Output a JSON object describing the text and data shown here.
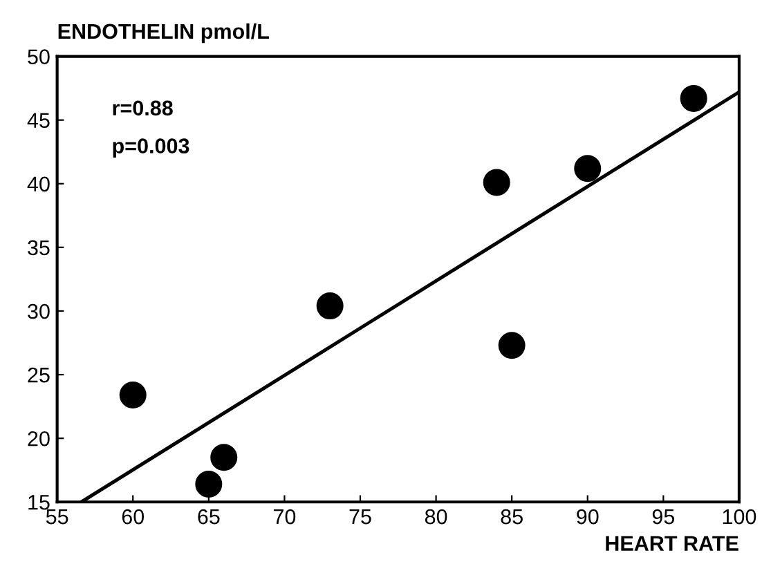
{
  "chart_data": {
    "type": "scatter",
    "ylabel": "ENDOTHELIN pmol/L",
    "xlabel": "HEART RATE",
    "annotations": [
      "r=0.88",
      "p=0.003"
    ],
    "x": [
      60,
      65,
      66,
      73,
      84,
      85,
      90,
      97
    ],
    "series": [
      {
        "color": "#000000",
        "marker": "circle",
        "values": [
          23.4,
          16.4,
          18.5,
          30.4,
          40.1,
          27.3,
          41.2,
          46.7
        ]
      },
      {
        "type": "line",
        "marker": "none",
        "color": "#000000",
        "x": [
          56.6,
          100
        ],
        "values": [
          15,
          47.2
        ]
      }
    ],
    "xlim": [
      55,
      100
    ],
    "ylim": [
      15,
      50
    ],
    "xticks": [
      55,
      60,
      65,
      70,
      75,
      80,
      85,
      90,
      95,
      100
    ],
    "yticks": [
      15,
      20,
      25,
      30,
      35,
      40,
      45,
      50
    ],
    "grid": false,
    "legend": false
  }
}
